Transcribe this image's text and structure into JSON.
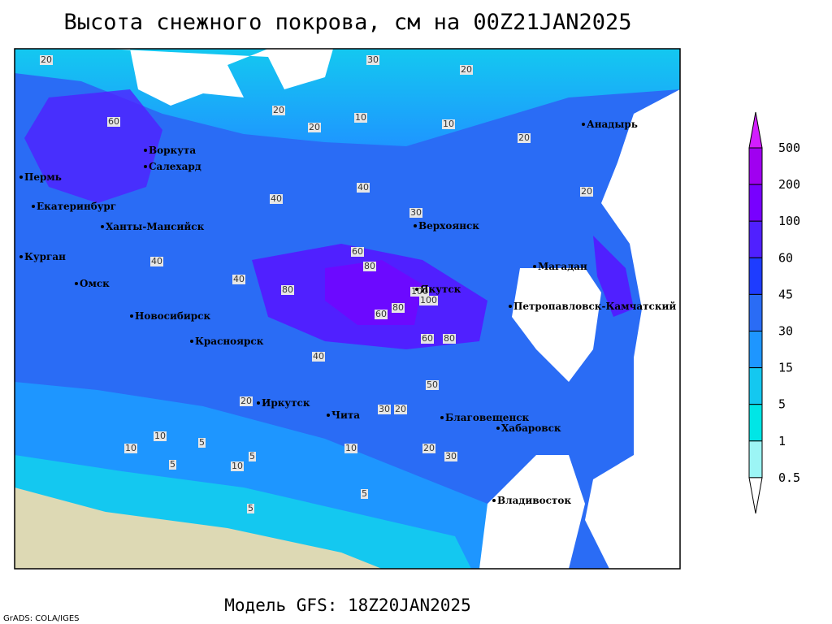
{
  "title": "Высота снежного покрова, см на 00Z21JAN2025",
  "subtitle": "Модель GFS: 18Z20JAN2025",
  "credit": "GrADS: COLA/IGES",
  "cities": [
    "Воркута",
    "Салехард",
    "Пермь",
    "Екатеринбург",
    "Ханты-Мансийск",
    "Курган",
    "Омск",
    "Новосибирск",
    "Красноярск",
    "Иркутск",
    "Чита",
    "Благовещенск",
    "Хабаровск",
    "Владивосток",
    "Верхоянск",
    "Якутск",
    "Магадан",
    "Петропавловск-Камчатский",
    "Анадырь"
  ],
  "contour_labels": [
    20,
    30,
    20,
    20,
    10,
    10,
    60,
    80,
    40,
    40,
    40,
    60,
    80,
    100,
    60,
    80,
    100,
    60,
    80,
    40,
    40,
    20,
    30,
    20,
    20,
    10,
    10,
    5,
    5,
    5,
    10,
    20,
    30,
    20,
    50,
    30,
    20,
    10,
    5,
    5
  ],
  "colorbar": {
    "levels": [
      500,
      200,
      100,
      60,
      45,
      30,
      15,
      5,
      1,
      0.5
    ],
    "colors": [
      "#d21eff",
      "#a000f0",
      "#7800ff",
      "#5020ff",
      "#1e3cff",
      "#2a6cf5",
      "#1e96ff",
      "#14c8f0",
      "#00e6e6",
      "#9cf5f5",
      "#ffffff"
    ]
  }
}
